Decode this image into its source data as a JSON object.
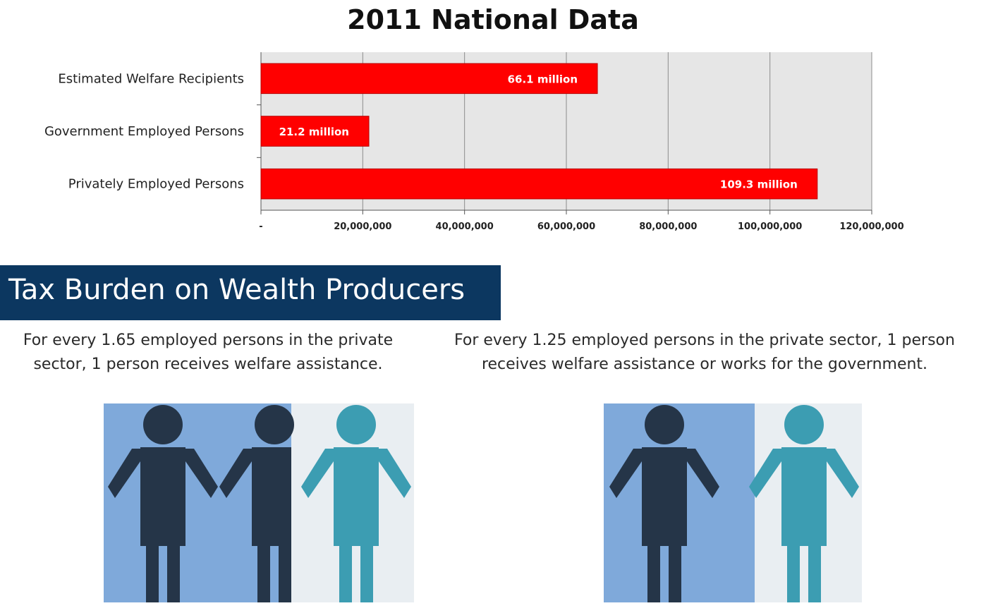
{
  "chart_data": {
    "type": "bar",
    "orientation": "horizontal",
    "title": "2011 National Data",
    "categories": [
      "Estimated Welfare Recipients",
      "Government Employed Persons",
      "Privately Employed Persons"
    ],
    "values": [
      66100000,
      21200000,
      109300000
    ],
    "data_labels": [
      "66.1 million",
      "21.2 million",
      "109.3 million"
    ],
    "xlim": [
      0,
      120000000
    ],
    "x_ticks": [
      0,
      20000000,
      40000000,
      60000000,
      80000000,
      100000000,
      120000000
    ],
    "x_tick_labels": [
      "-",
      "20,000,000",
      "40,000,000",
      "60,000,000",
      "80,000,000",
      "100,000,000",
      "120,000,000"
    ],
    "grid": true,
    "bar_color": "#ff0000",
    "plot_background": "#e6e6e6"
  },
  "section": {
    "title": "Tax Burden on Wealth Producers",
    "caption_left_1": "For every 1.65 employed persons in the private",
    "caption_left_2": "sector, 1 person receives welfare assistance.",
    "caption_right_1": "For every 1.25 employed persons in the private sector, 1 person",
    "caption_right_2": "receives welfare assistance or works for the government."
  },
  "colors": {
    "banner": "#0c3760",
    "panel_dark": "#7fa9da",
    "panel_light": "#e9eef2",
    "figure_dark": "#253548",
    "figure_teal": "#3c9db2"
  },
  "icons": {
    "worker": "person-figure-dark",
    "recipient": "person-figure-teal"
  }
}
